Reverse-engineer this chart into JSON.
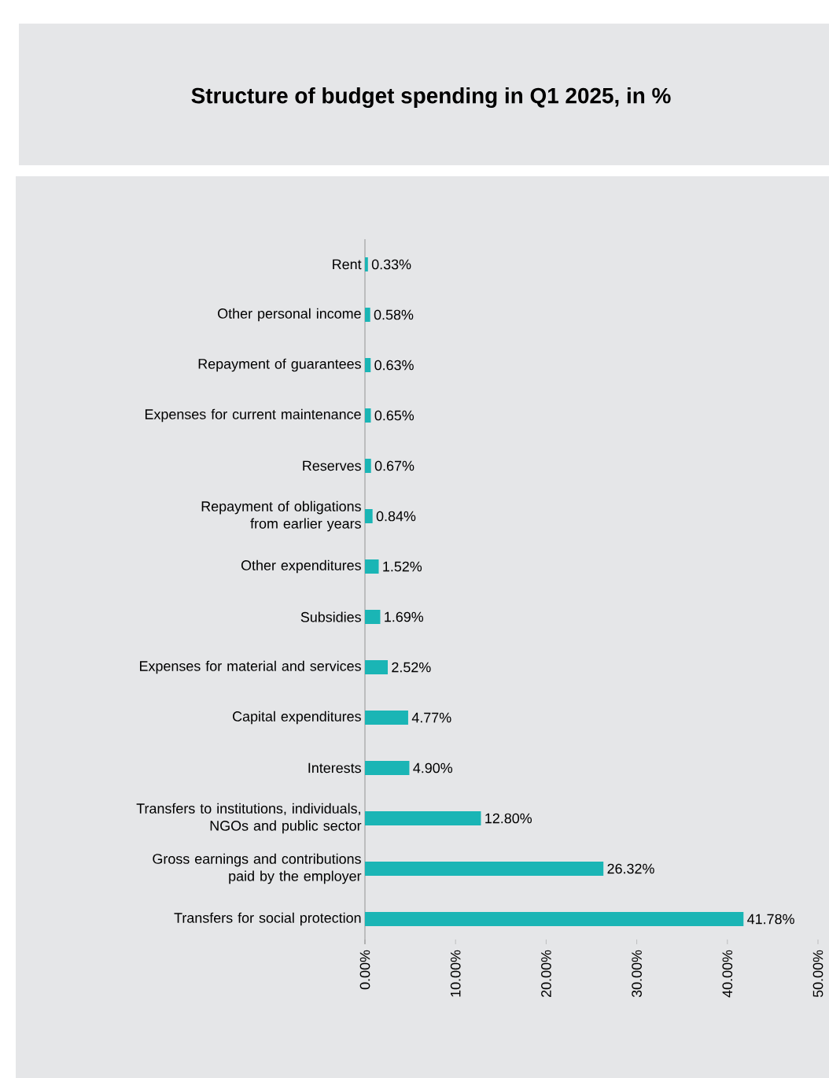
{
  "chart_data": {
    "type": "bar",
    "orientation": "horizontal",
    "title": "Structure of budget spending in Q1 2025, in %",
    "categories": [
      "Rent",
      "Other personal income",
      "Repayment of guarantees",
      "Expenses for current maintenance",
      "Reserves",
      "Repayment of obligations from earlier years",
      "Other expenditures",
      "Subsidies",
      "Expenses for material and services",
      "Capital expenditures",
      "Interests",
      "Transfers to institutions, individuals, NGOs and public sector",
      "Gross earnings and contributions paid by the employer",
      "Transfers for social protection"
    ],
    "values": [
      0.33,
      0.58,
      0.63,
      0.65,
      0.67,
      0.84,
      1.52,
      1.69,
      2.52,
      4.77,
      4.9,
      12.8,
      26.32,
      41.78
    ],
    "value_labels": [
      "0.33%",
      "0.58%",
      "0.63%",
      "0.65%",
      "0.67%",
      "0.84%",
      "1.52%",
      "1.69%",
      "2.52%",
      "4.77%",
      "4.90%",
      "12.80%",
      "26.32%",
      "41.78%"
    ],
    "color": "#1ab5b5",
    "xlim": [
      0,
      50
    ],
    "xticks": [
      {
        "value": 0,
        "label": "0.00%"
      },
      {
        "value": 10,
        "label": "10.00%"
      },
      {
        "value": 20,
        "label": "20.00%"
      },
      {
        "value": 30,
        "label": "30.00%"
      },
      {
        "value": 40,
        "label": "40.00%"
      },
      {
        "value": 50,
        "label": "50.00%"
      }
    ],
    "grid": false
  }
}
